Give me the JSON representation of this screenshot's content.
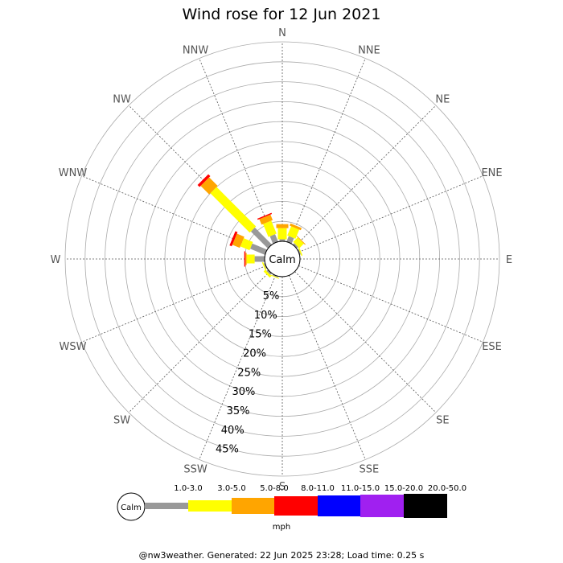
{
  "chart_data": {
    "type": "wind-rose",
    "title": "Wind rose for 12 Jun 2021",
    "calm_label": "Calm",
    "directions": [
      "N",
      "NNE",
      "NE",
      "ENE",
      "E",
      "ESE",
      "SE",
      "SSE",
      "S",
      "SSW",
      "SW",
      "WSW",
      "W",
      "WNW",
      "NW",
      "NNW"
    ],
    "ring_labels": [
      "5%",
      "10%",
      "15%",
      "20%",
      "25%",
      "30%",
      "35%",
      "40%",
      "45%"
    ],
    "ring_values": [
      5,
      10,
      15,
      20,
      25,
      30,
      35,
      40,
      45
    ],
    "rmax": 50,
    "unit": "mph",
    "bins": [
      {
        "label": "1.0-3.0",
        "color": "#999999"
      },
      {
        "label": "3.0-5.0",
        "color": "#ffff00"
      },
      {
        "label": "5.0-8.0",
        "color": "#ffa500"
      },
      {
        "label": "8.0-11.0",
        "color": "#ff0000"
      },
      {
        "label": "11.0-15.0",
        "color": "#0000ff"
      },
      {
        "label": "15.0-20.0",
        "color": "#a020f0"
      },
      {
        "label": "20.0-50.0",
        "color": "#000000"
      }
    ],
    "petals": [
      {
        "direction": "N",
        "segments": [
          0.5,
          2.8,
          1.0
        ]
      },
      {
        "direction": "NNE",
        "segments": [
          1.5,
          2.5,
          0.6
        ]
      },
      {
        "direction": "NE",
        "segments": [
          0.5,
          1.6,
          0.2
        ]
      },
      {
        "direction": "ENE",
        "segments": [
          0.3,
          0.3
        ]
      },
      {
        "direction": "SSW",
        "segments": [
          0.3,
          0.2
        ]
      },
      {
        "direction": "SW",
        "segments": [
          0.5,
          0.6
        ]
      },
      {
        "direction": "WSW",
        "segments": [
          0.3,
          0.3
        ]
      },
      {
        "direction": "W",
        "segments": [
          2.5,
          2.0,
          0.3,
          0.3
        ]
      },
      {
        "direction": "WNW",
        "segments": [
          4.0,
          2.5,
          2.0,
          0.6
        ]
      },
      {
        "direction": "NW",
        "segments": [
          6.0,
          14.0,
          3.0,
          0.7
        ]
      },
      {
        "direction": "NNW",
        "segments": [
          2.0,
          3.5,
          1.5,
          0.3
        ]
      }
    ]
  },
  "footer": "@nw3weather. Generated: 22 Jun 2025 23:28; Load time: 0.25 s"
}
